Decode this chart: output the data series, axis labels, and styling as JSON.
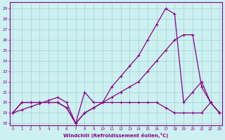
{
  "xlabel": "Windchill (Refroidissement éolien,°C)",
  "bg_color": "#cdf0f0",
  "line_color": "#880088",
  "grid_color": "#a8d8d8",
  "x_ticks": [
    0,
    1,
    2,
    3,
    4,
    5,
    6,
    7,
    8,
    9,
    10,
    11,
    12,
    13,
    14,
    15,
    16,
    17,
    18,
    19,
    20,
    21,
    22,
    23
  ],
  "y_ticks": [
    18,
    19,
    20,
    21,
    22,
    23,
    24,
    25,
    26,
    27,
    28,
    29
  ],
  "ylim": [
    17.8,
    29.6
  ],
  "xlim": [
    -0.3,
    23.3
  ],
  "line1_x": [
    0,
    1,
    2,
    3,
    4,
    5,
    6,
    7,
    8,
    9,
    10,
    11,
    12,
    13,
    14,
    15,
    16,
    17,
    18,
    19,
    20,
    21,
    22,
    23
  ],
  "line1_y": [
    19,
    20,
    20,
    20,
    20,
    20,
    19.5,
    18,
    19,
    19.5,
    20,
    20,
    20,
    20,
    20,
    20,
    20,
    19.5,
    19,
    19,
    19,
    19,
    20,
    19
  ],
  "line2_x": [
    0,
    1,
    2,
    3,
    4,
    5,
    6,
    7,
    8,
    9,
    10,
    11,
    12,
    13,
    14,
    15,
    16,
    17,
    18,
    19,
    20,
    21,
    22,
    23
  ],
  "line2_y": [
    19,
    20,
    20,
    20,
    20,
    20,
    19.5,
    18,
    21,
    20,
    20,
    21.5,
    22.5,
    23.5,
    24.5,
    26,
    27.5,
    29,
    28.5,
    20,
    21,
    22,
    20,
    19
  ],
  "line3_x": [
    0,
    1,
    2,
    3,
    4,
    5,
    6,
    7,
    8,
    9,
    10,
    11,
    12,
    13,
    14,
    15,
    16,
    17,
    18,
    19,
    20,
    21,
    22,
    23
  ],
  "line3_y": [
    19,
    19.3,
    19.6,
    19.9,
    20.2,
    20.5,
    20.0,
    18,
    19,
    19.5,
    20,
    20.5,
    21,
    21.5,
    22,
    23,
    24,
    25,
    26,
    26.5,
    26.5,
    21.5,
    20,
    19
  ]
}
